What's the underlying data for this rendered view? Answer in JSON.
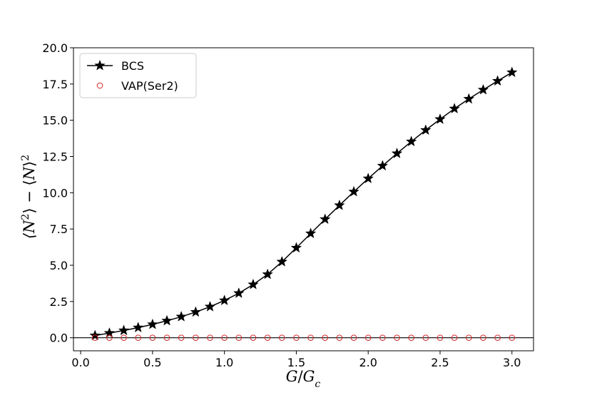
{
  "chart_data": {
    "type": "line",
    "xlabel": "G/G_c",
    "ylabel": "⟨N²⟩ − ⟨N⟩²",
    "xlim": [
      -0.05,
      3.15
    ],
    "ylim": [
      -0.9,
      20.0
    ],
    "xticks": [
      "0.0",
      "0.5",
      "1.0",
      "1.5",
      "2.0",
      "2.5",
      "3.0"
    ],
    "yticks": [
      "0.0",
      "2.5",
      "5.0",
      "7.5",
      "10.0",
      "12.5",
      "15.0",
      "17.5",
      "20.0"
    ],
    "legend_position": "top-left",
    "grid": false,
    "zero_line": true,
    "x": [
      0.1,
      0.2,
      0.3,
      0.4,
      0.5,
      0.6,
      0.7,
      0.8,
      0.9,
      1.0,
      1.1,
      1.2,
      1.3,
      1.4,
      1.5,
      1.6,
      1.7,
      1.8,
      1.9,
      2.0,
      2.1,
      2.2,
      2.3,
      2.4,
      2.5,
      2.6,
      2.7,
      2.8,
      2.9,
      3.0
    ],
    "series": [
      {
        "name": "BCS",
        "marker": "star",
        "line": true,
        "color": "#000000",
        "values": [
          0.15,
          0.32,
          0.5,
          0.7,
          0.92,
          1.17,
          1.45,
          1.77,
          2.14,
          2.57,
          3.07,
          3.67,
          4.37,
          5.24,
          6.2,
          7.19,
          8.17,
          9.13,
          10.07,
          10.98,
          11.86,
          12.71,
          13.53,
          14.32,
          15.07,
          15.8,
          16.47,
          17.1,
          17.71,
          18.3
        ]
      },
      {
        "name": "VAP(Ser2)",
        "marker": "open-circle",
        "line": false,
        "color": "#d62728",
        "values": [
          0,
          0,
          0,
          0,
          0,
          0,
          0,
          0,
          0,
          0,
          0,
          0,
          0,
          0,
          0,
          0,
          0,
          0,
          0,
          0,
          0,
          0,
          0,
          0,
          0,
          0,
          0,
          0,
          0,
          0
        ]
      }
    ]
  }
}
